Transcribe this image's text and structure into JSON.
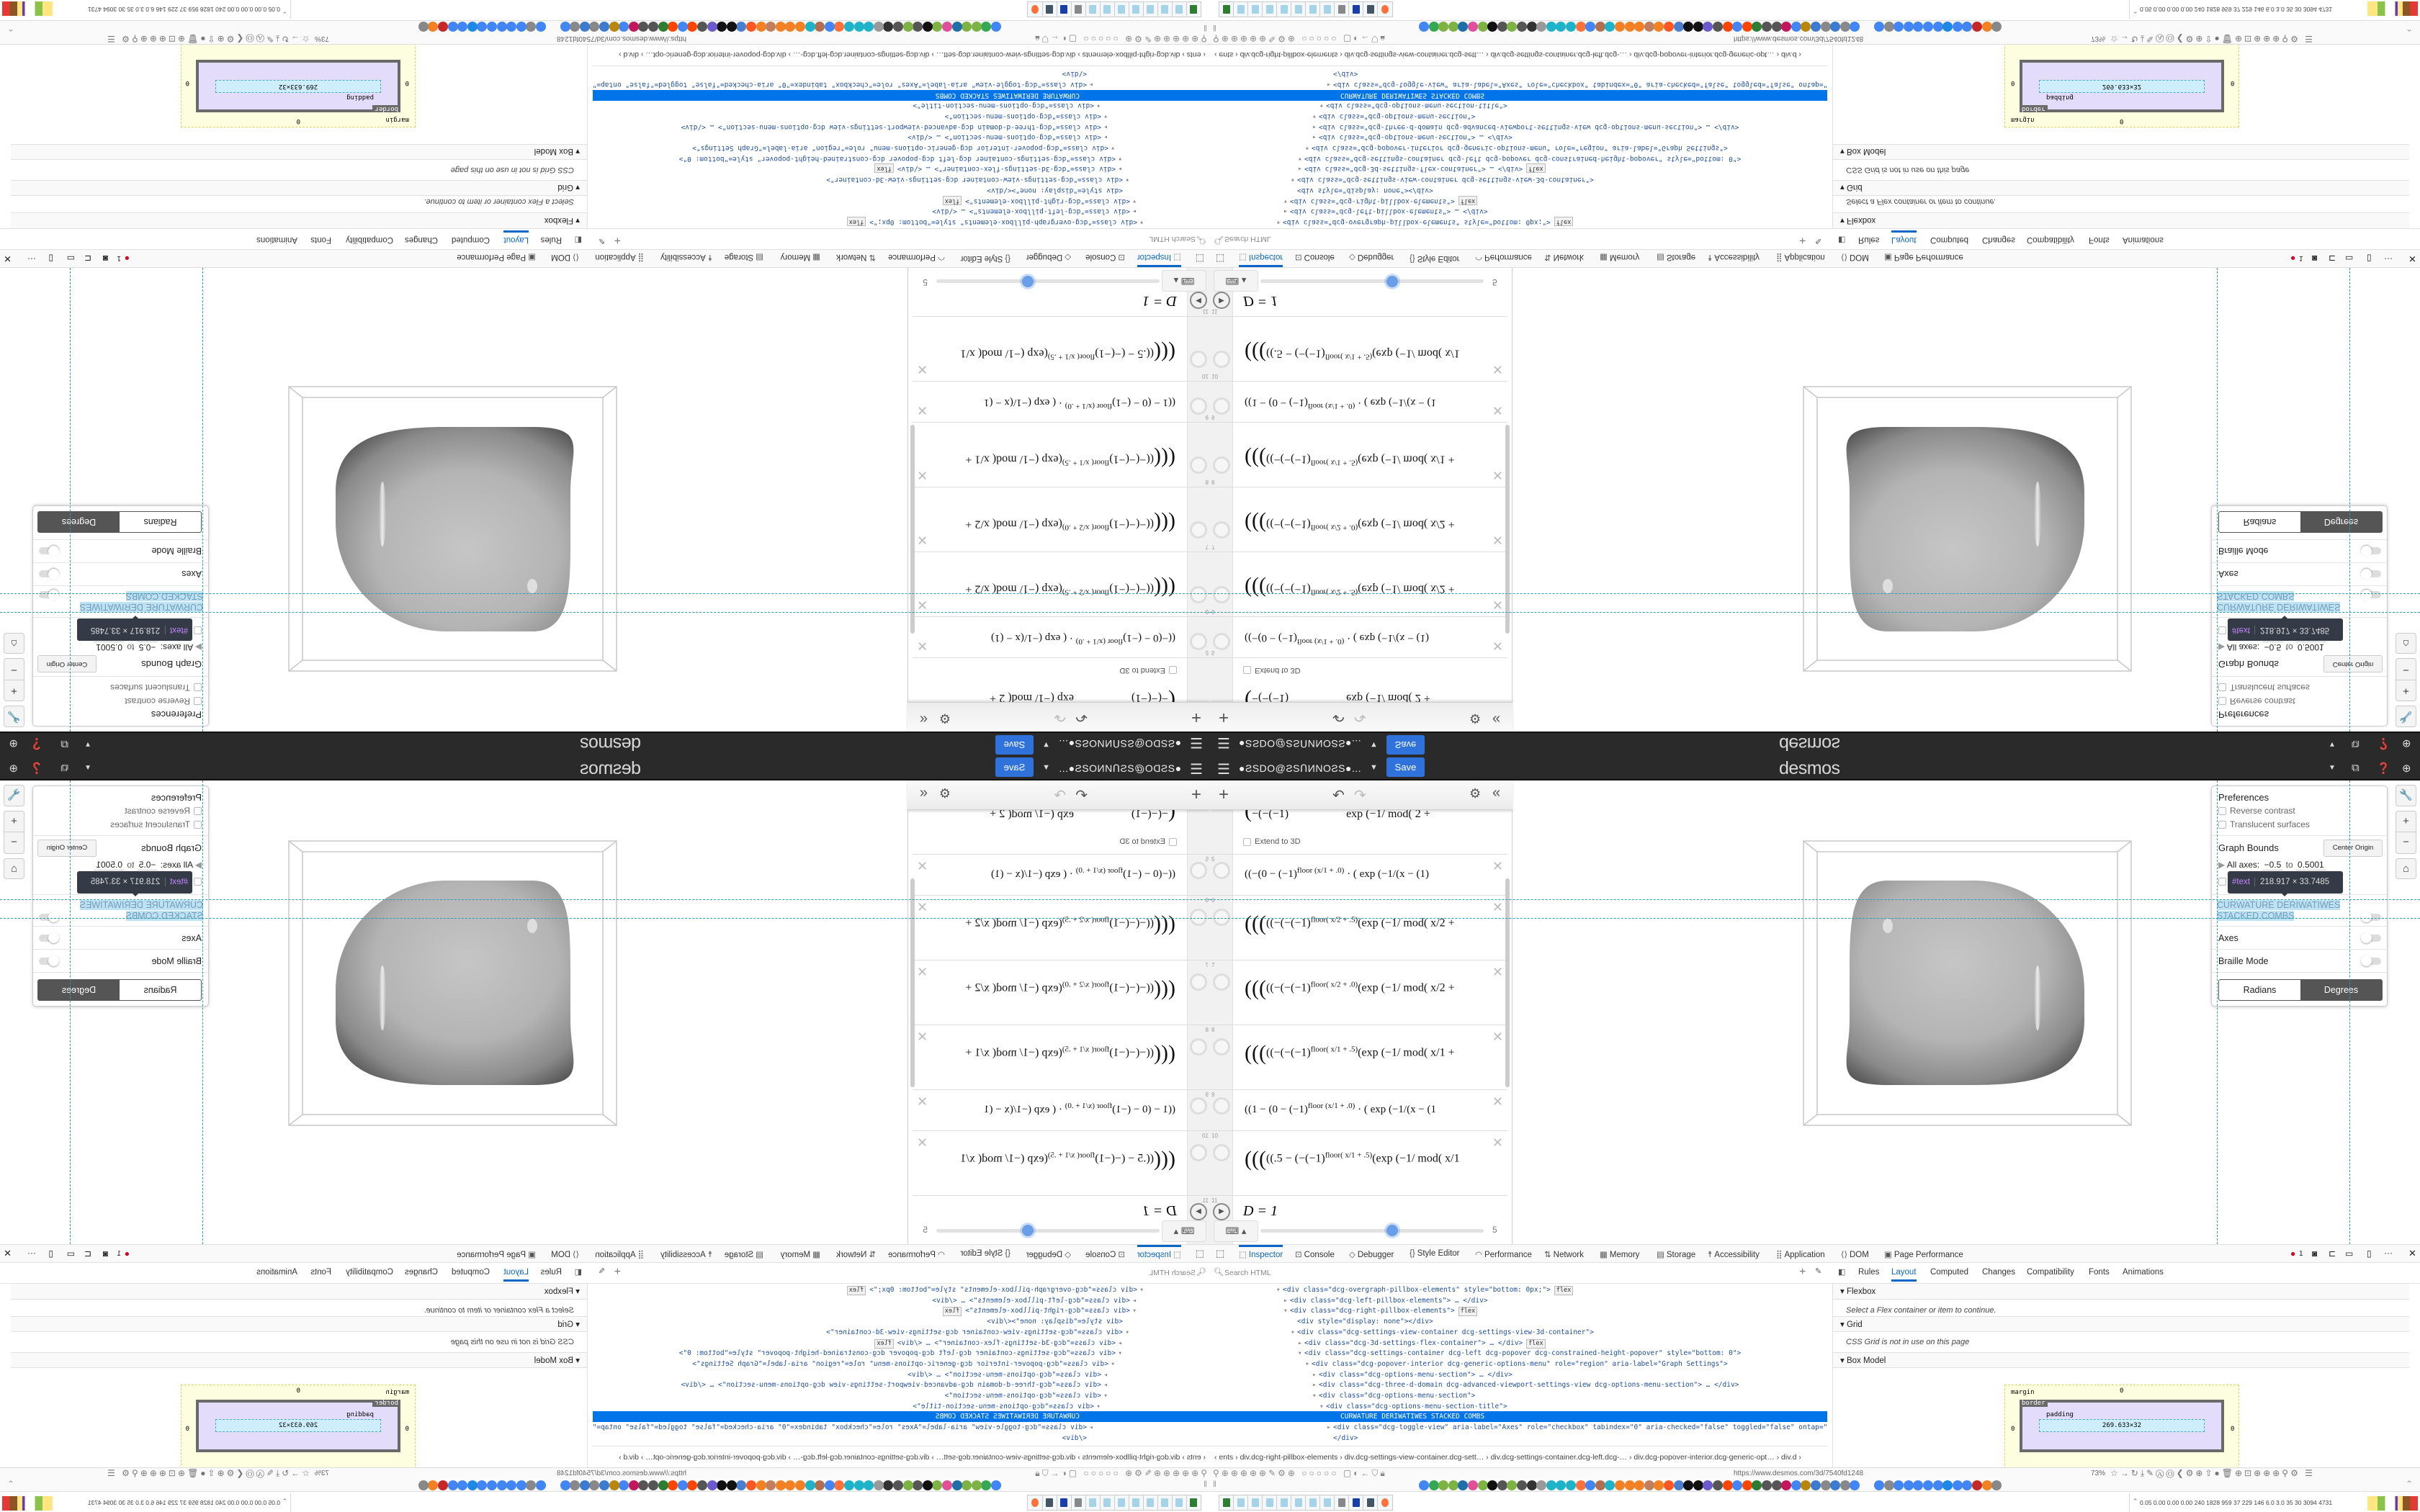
{
  "desmos": {
    "user": "●ƧSDO@ƧSՈИNOƧS●...",
    "dropdown_icon": "caret-down-icon",
    "save_label": "Save",
    "logo": "desmos",
    "save_color": "#2f72dc",
    "header_bg": "#2a2a2a"
  },
  "expressions": {
    "partial_row": {
      "pre": "−(−(−1)",
      "post": "exp (−1/ mod( 2 +",
      "extend_label": "Extend to 3D"
    },
    "rows": [
      {
        "num": "5",
        "pre": "((−(0 − (−1)",
        "sup": "floor (x/1 + .0)",
        "post": " · ( exp (−1/(x − (1)",
        "tall": false
      },
      {
        "num": "6",
        "pre": "((−(−(−1)",
        "sup": "floor( x/2 + .5)",
        "post": "(exp (−1/ mod( x/2 +",
        "tall": true
      },
      {
        "num": "7",
        "pre": "((−(−(−1)",
        "sup": "floor( x/2 + .0)",
        "post": "(exp (−1/ mod( x/2 +",
        "tall": true
      },
      {
        "num": "8",
        "pre": "((−(−(−1)",
        "sup": "floor( x/1 + .5)",
        "post": "(exp (−1/ mod( x/1 +",
        "tall": true
      },
      {
        "num": "9",
        "pre": "((1 − (0 − (−1)",
        "sup": "floor (x/1 + .0)",
        "post": " · ( exp (−1/(x − (1",
        "tall": false
      },
      {
        "num": "10",
        "pre": "((.5 − (−(−1)",
        "sup": "floor( x/1 + .5)",
        "post": "(exp (−1/ mod( x/1",
        "tall": true
      }
    ],
    "slider_row": {
      "num": "11",
      "text": "D = 1",
      "max": "5",
      "value_fraction": 0.59
    }
  },
  "settings": {
    "preferences": "Preferences",
    "reverse_contrast": "Reverse contrast",
    "translucent_surfaces": "Translucent surfaces",
    "graph_bounds": "Graph Bounds",
    "center_origin": "Center Origin",
    "all_axes": "All axes:",
    "min": "−0.5",
    "to": "to",
    "max": "0.5001",
    "tooltip_node": "#text",
    "tooltip_size": "218.917 × 33.7485",
    "section_title_1": "CURWATURE DERIWATIWES",
    "section_title_2": "STACKED COMBS",
    "axes": "Axes",
    "braille": "Braille Mode",
    "radians": "Radians",
    "degrees": "Degrees",
    "selected_unit": "Degrees"
  },
  "devtools": {
    "tabs": [
      "Inspector",
      "Console",
      "Debugger",
      "Style Editor",
      "Performance",
      "Network",
      "Memory",
      "Storage",
      "Accessibility",
      "Application",
      "DOM",
      "Page Performance"
    ],
    "active_tab": "Inspector",
    "error_count": "1",
    "search_placeholder": "Search HTML",
    "side_tabs": [
      "Rules",
      "Layout",
      "Computed",
      "Changes",
      "Compatibility",
      "Fonts",
      "Animations"
    ],
    "active_side_tab": "Layout",
    "tree": [
      {
        "depth": 0,
        "arrow": "▾",
        "text": "<div class=\"dcg-overgraph-pillbox-elements\" style=\"bottom: 0px;\">",
        "badge": "flex"
      },
      {
        "depth": 1,
        "arrow": "▸",
        "text": "<div class=\"dcg-left-pillbox-elements\"> … </div>"
      },
      {
        "depth": 1,
        "arrow": "▾",
        "text": "<div class=\"dcg-right-pillbox-elements\">",
        "badge": "flex"
      },
      {
        "depth": 2,
        "arrow": "",
        "text": "<div style=\"display: none\"></div>"
      },
      {
        "depth": 2,
        "arrow": "▾",
        "text": "<div class=\"dcg-settings-view-container dcg-settings-view-3d-container\">"
      },
      {
        "depth": 3,
        "arrow": "▸",
        "text": "<div class=\"dcg-3d-settings-flex-container\"> … </div>",
        "badge": "flex"
      },
      {
        "depth": 3,
        "arrow": "▾",
        "text": "<div class=\"dcg-settings-container dcg-left dcg-popover dcg-constrained-height-popover\" style=\"bottom: 0\">"
      },
      {
        "depth": 4,
        "arrow": "▾",
        "text": "<div class=\"dcg-popover-interior dcg-generic-options-menu\" role=\"region\" aria-label=\"Graph Settings\">"
      },
      {
        "depth": 5,
        "arrow": "▸",
        "text": "<div class=\"dcg-options-menu-section\"> … </div>"
      },
      {
        "depth": 5,
        "arrow": "▸",
        "text": "<div class=\"dcg-three-d-domain dcg-advanced-viewport-settings-view dcg-options-menu-section\"> … </div>"
      },
      {
        "depth": 5,
        "arrow": "▾",
        "text": "<div class=\"dcg-options-menu-section\">"
      },
      {
        "depth": 6,
        "arrow": "▾",
        "text": "<div class=\"dcg-options-menu-section-title\">"
      },
      {
        "depth": 8,
        "arrow": "",
        "text": "CURWATURE DERIWATIWES STACKED COMBS",
        "selected": true
      },
      {
        "depth": 7,
        "arrow": "▸",
        "text": "<div class=\"dcg-toggle-view\" aria-label=\"Axes\" role=\"checkbox\" tabindex=\"0\" aria-checked=\"false\" toggled=\"false\" ontap=\"\"> … </div>"
      },
      {
        "depth": 7,
        "arrow": "",
        "text": "</div>"
      }
    ],
    "breadcrumb": "‹  ents › div.dcg-right-pillbox-elements › div.dcg-settings-view-container.dcg-sett… › div.dcg-settings-container.dcg-left.dcg-… › div.dcg-popover-interior.dcg-generic-opt… › div.d ›",
    "layout": {
      "flexbox": "Flexbox",
      "flexbox_msg": "Select a Flex container or item to continue.",
      "grid": "Grid",
      "grid_msg": "CSS Grid is not in use on this page",
      "box_model": "Box Model",
      "margin": "margin",
      "border": "border",
      "padding": "padding",
      "zero": "0",
      "content_size": "269.633×32"
    }
  },
  "browser": {
    "url": "https://www.desmos.com/3d/7540fd1248",
    "zoom": "73%",
    "bookmark_colors": [
      "#4285f4",
      "#34a853",
      "#7cb342",
      "#7cb342",
      "#1e6fa8",
      "#e0509a",
      "#7cb342",
      "#111",
      "#555",
      "#7cb342",
      "#555",
      "#333",
      "#999",
      "#1fb3c9",
      "#1fb3c9",
      "#1fb3c9",
      "#ff7139",
      "#4285f4",
      "#b07050",
      "#1fb3c9",
      "#f48024",
      "#f48024",
      "#f48024",
      "#c08060",
      "#f48024",
      "#ff5722",
      "#4a7fd0",
      "#111",
      "#111",
      "#6a5acd",
      "#555",
      "#ff4500",
      "#4285f4",
      "#ff4500",
      "#2e7d32",
      "#555",
      "#555",
      "#c2185b",
      "#4285f4",
      "#b8860b",
      "#3d7bd0",
      "#888",
      "#3d7bd0",
      "#888",
      "#4285f4",
      "#4285f4",
      "#888",
      "#4285f4",
      "#4285f4",
      "#4285f4",
      "#4285f4",
      "#4285f4",
      "#1e88e5",
      "#4285f4",
      "#4285f4",
      "#c62828",
      "#f48024",
      "#888"
    ],
    "tray_text": "0.05 0.00 0.00 0.00 240 1828 959 37 229 146 6.0 3.0 35 30 3094 4731",
    "taskbar_icons": [
      "terminal",
      "notepad",
      "notepad",
      "notepad",
      "notepad",
      "notepad",
      "notepad",
      "notepad",
      "speaker",
      "floppy-64",
      "monitor",
      "firefox"
    ]
  },
  "guides_color": "#2a9bb8"
}
